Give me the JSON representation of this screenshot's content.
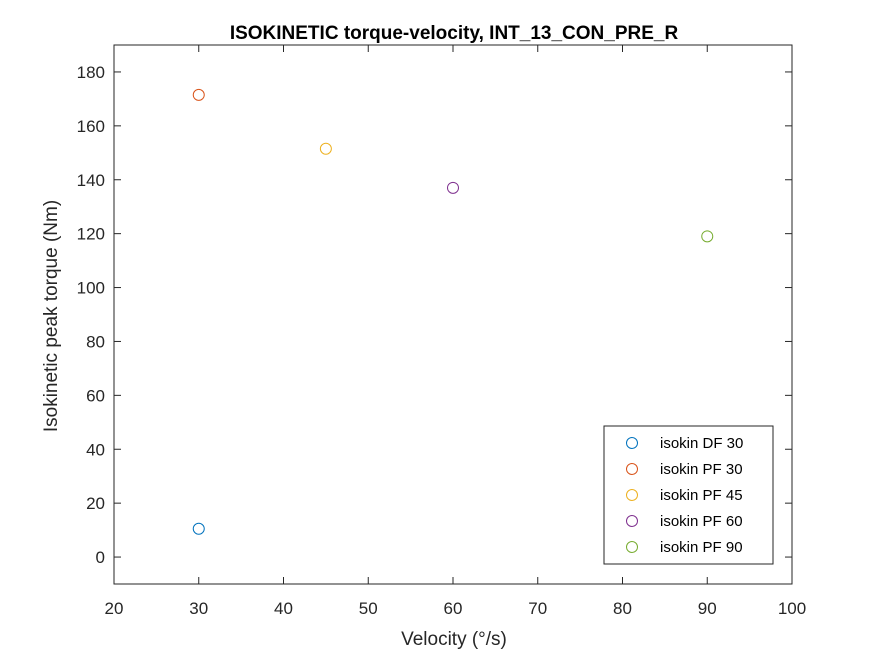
{
  "chart_data": {
    "type": "scatter",
    "title": "ISOKINETIC torque-velocity, INT_13_CON_PRE_R",
    "xlabel": "Velocity (°/s)",
    "ylabel": "Isokinetic peak torque (Nm)",
    "xlim": [
      20,
      100
    ],
    "ylim": [
      -10,
      190
    ],
    "xticks": [
      20,
      30,
      40,
      50,
      60,
      70,
      80,
      90,
      100
    ],
    "yticks": [
      0,
      20,
      40,
      60,
      80,
      100,
      120,
      140,
      160,
      180
    ],
    "grid": false,
    "legend_position": "bottom-right",
    "series": [
      {
        "name": "isokin DF 30",
        "color": "#0072BD",
        "points": [
          {
            "x": 30,
            "y": 10.5
          }
        ]
      },
      {
        "name": "isokin PF 30",
        "color": "#D95319",
        "points": [
          {
            "x": 30,
            "y": 171.5
          }
        ]
      },
      {
        "name": "isokin PF 45",
        "color": "#EDB120",
        "points": [
          {
            "x": 45,
            "y": 151.5
          }
        ]
      },
      {
        "name": "isokin PF 60",
        "color": "#7E2F8E",
        "points": [
          {
            "x": 60,
            "y": 137
          }
        ]
      },
      {
        "name": "isokin PF 90",
        "color": "#77AC30",
        "points": [
          {
            "x": 90,
            "y": 119
          }
        ]
      }
    ]
  }
}
